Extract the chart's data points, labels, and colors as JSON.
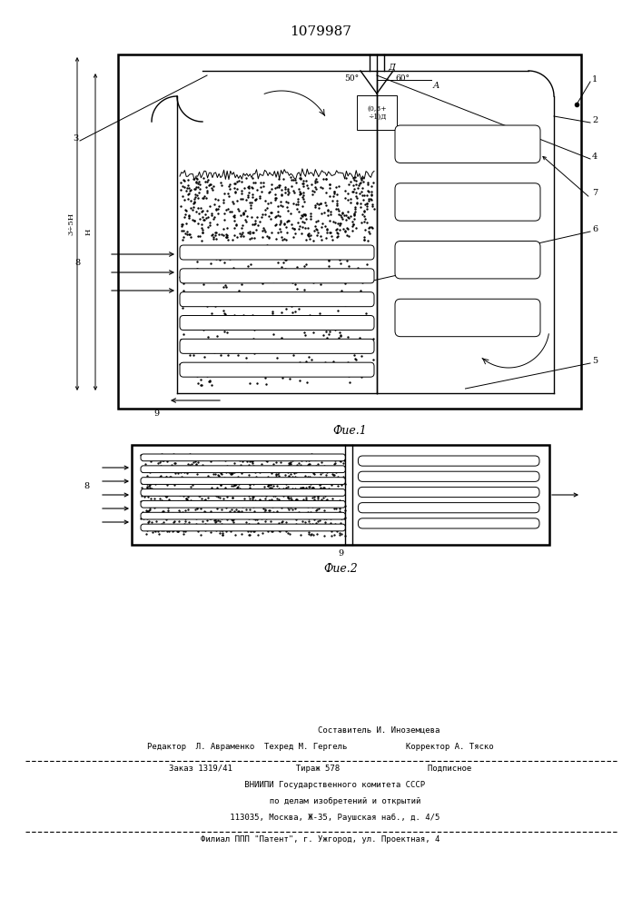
{
  "patent_number": "1079987",
  "fig1_label": "Фие.1",
  "fig2_label": "Фие.2",
  "bg_color": "#ffffff",
  "line_color": "#000000",
  "footer_lines": [
    "                        Составитель И. Иноземцева",
    "Редактор  Л. Авраменко  Техред М. Гергель            Корректор А. Тяско",
    "Заказ 1319/41             Тираж 578                  Подписное",
    "      ВНИИПИ Государственного комитета СССР",
    "          по делам изобретений и открытий",
    "      113035, Москва, Ж-35, Раушская наб., д. 4/5",
    "Филиал ППП \"Патент\", г. Ужгород, ул. Проектная, 4"
  ]
}
